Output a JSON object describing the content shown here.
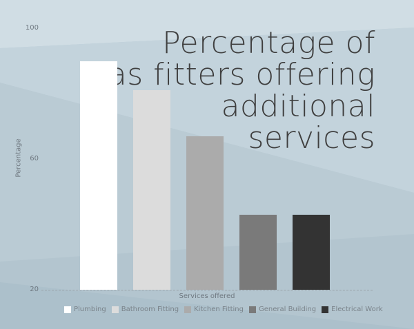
{
  "chart_data": {
    "type": "bar",
    "title": "Percentage of gas fitters offering additional services",
    "title_lines": [
      "Percentage of",
      "gas fitters offering",
      "additional",
      "services"
    ],
    "xlabel": "Services offered",
    "ylabel": "Percentage",
    "ylim": [
      20,
      100
    ],
    "yticks": [
      "100",
      "60",
      "20"
    ],
    "categories": [
      "Plumbing",
      "Bathroom Fitting",
      "Kitchen Fitting",
      "General Building",
      "Electrical Work"
    ],
    "values": [
      90,
      81,
      67,
      43,
      43
    ],
    "colors": [
      "#ffffff",
      "#dcdcdc",
      "#ababab",
      "#7a7a7a",
      "#333333"
    ],
    "legend_position": "bottom",
    "grid": false
  }
}
